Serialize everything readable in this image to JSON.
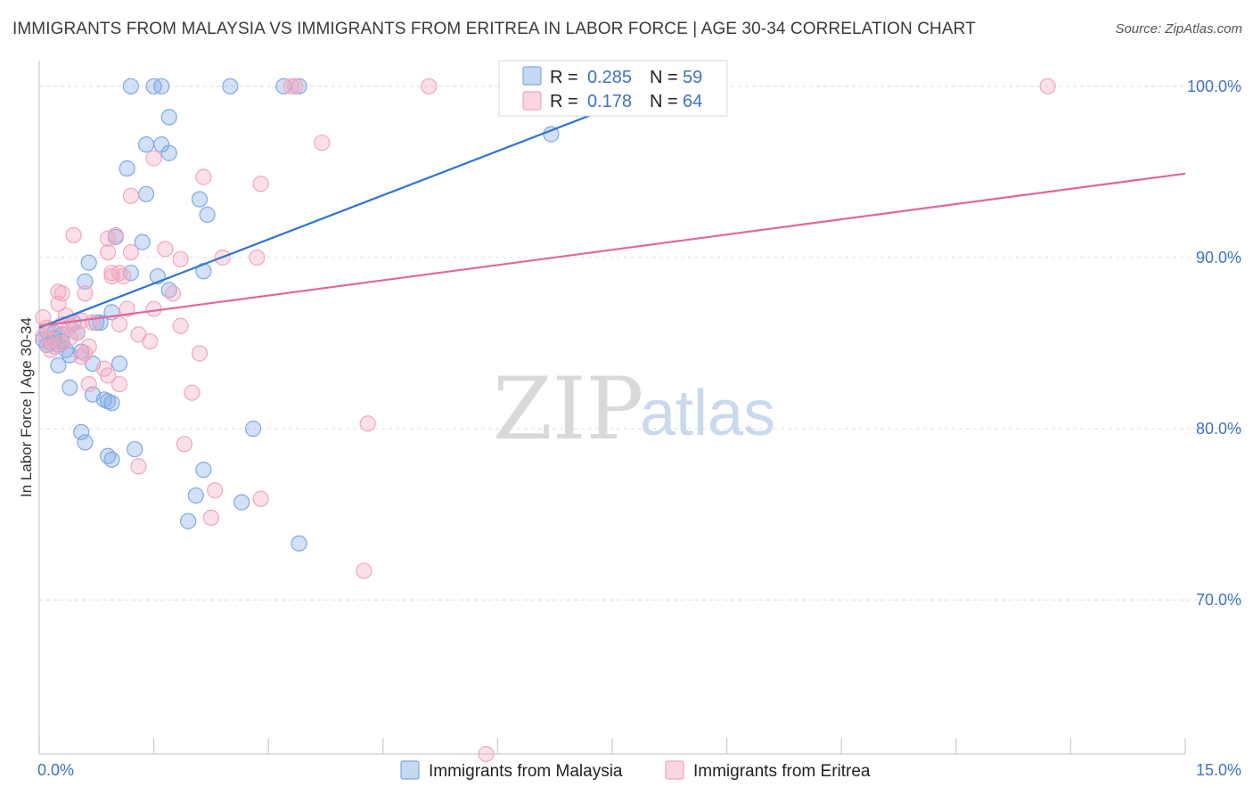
{
  "header": {
    "title": "IMMIGRANTS FROM MALAYSIA VS IMMIGRANTS FROM ERITREA IN LABOR FORCE | AGE 30-34 CORRELATION CHART",
    "source": "Source: ZipAtlas.com"
  },
  "watermark": {
    "zip": "ZIP",
    "atlas": "atlas"
  },
  "legend_top": [
    {
      "r_label": "R =",
      "r_value": "0.285",
      "n_label": "N =",
      "n_value": "59",
      "color": "#7fa8e3"
    },
    {
      "r_label": "R =",
      "r_value": "0.178",
      "n_label": "N =",
      "n_value": "64",
      "color": "#f2a5bf"
    }
  ],
  "chart_data": {
    "type": "scatter",
    "title": "IMMIGRANTS FROM MALAYSIA VS IMMIGRANTS FROM ERITREA IN LABOR FORCE | AGE 30-34 CORRELATION CHART",
    "xlabel": "",
    "ylabel": "In Labor Force | Age 30-34",
    "xlim": [
      0,
      15
    ],
    "ylim": [
      61,
      101.5
    ],
    "x_tick_labels": [
      "0.0%",
      "15.0%"
    ],
    "y_ticks": [
      70,
      80,
      90,
      100
    ],
    "y_tick_labels": [
      "70.0%",
      "80.0%",
      "90.0%",
      "100.0%"
    ],
    "grid": true,
    "legend_position": "top-center",
    "series": [
      {
        "name": "Immigrants from Malaysia",
        "color": "#7fa8e3",
        "line_color": "#2f74d0",
        "trend": {
          "x": [
            0.0,
            8.2
          ],
          "y": [
            85.9,
            100.0
          ]
        },
        "points": [
          [
            1.2,
            100
          ],
          [
            1.5,
            100
          ],
          [
            1.6,
            100
          ],
          [
            2.5,
            100
          ],
          [
            3.2,
            100
          ],
          [
            3.4,
            100
          ],
          [
            1.7,
            98.2
          ],
          [
            1.4,
            96.6
          ],
          [
            1.6,
            96.6
          ],
          [
            1.7,
            96.1
          ],
          [
            1.15,
            95.2
          ],
          [
            1.4,
            93.7
          ],
          [
            2.1,
            93.4
          ],
          [
            2.2,
            92.5
          ],
          [
            6.7,
            97.2
          ],
          [
            1.35,
            90.9
          ],
          [
            1.0,
            91.2
          ],
          [
            0.65,
            89.7
          ],
          [
            0.6,
            88.6
          ],
          [
            1.2,
            89.1
          ],
          [
            1.55,
            88.9
          ],
          [
            2.15,
            89.2
          ],
          [
            1.7,
            88.1
          ],
          [
            0.95,
            86.8
          ],
          [
            0.45,
            86.2
          ],
          [
            0.75,
            86.2
          ],
          [
            0.8,
            86.2
          ],
          [
            0.1,
            85.7
          ],
          [
            0.2,
            85.6
          ],
          [
            0.3,
            85.5
          ],
          [
            0.5,
            85.6
          ],
          [
            0.05,
            85.2
          ],
          [
            0.15,
            85.0
          ],
          [
            0.25,
            84.9
          ],
          [
            0.35,
            84.6
          ],
          [
            0.4,
            84.3
          ],
          [
            0.55,
            84.5
          ],
          [
            0.25,
            83.7
          ],
          [
            0.7,
            83.8
          ],
          [
            1.05,
            83.8
          ],
          [
            0.4,
            82.4
          ],
          [
            0.7,
            82.0
          ],
          [
            0.85,
            81.7
          ],
          [
            0.9,
            81.6
          ],
          [
            0.95,
            81.5
          ],
          [
            0.55,
            79.8
          ],
          [
            0.6,
            79.2
          ],
          [
            1.25,
            78.8
          ],
          [
            0.9,
            78.4
          ],
          [
            0.95,
            78.2
          ],
          [
            2.15,
            77.6
          ],
          [
            2.8,
            80.0
          ],
          [
            2.05,
            76.1
          ],
          [
            2.65,
            75.7
          ],
          [
            1.95,
            74.6
          ],
          [
            3.4,
            73.3
          ],
          [
            0.2,
            85.3
          ],
          [
            0.1,
            84.9
          ],
          [
            0.3,
            85.1
          ]
        ]
      },
      {
        "name": "Immigrants from Eritrea",
        "color": "#f2a5bf",
        "line_color": "#e0679a",
        "trend": {
          "x": [
            0.0,
            15.0
          ],
          "y": [
            86.0,
            94.9
          ]
        },
        "points": [
          [
            3.3,
            100
          ],
          [
            3.35,
            100
          ],
          [
            5.1,
            100
          ],
          [
            13.2,
            100
          ],
          [
            3.7,
            96.7
          ],
          [
            1.5,
            95.8
          ],
          [
            2.15,
            94.7
          ],
          [
            2.9,
            94.3
          ],
          [
            1.2,
            93.6
          ],
          [
            0.45,
            91.3
          ],
          [
            0.9,
            91.1
          ],
          [
            1.0,
            91.3
          ],
          [
            1.2,
            90.3
          ],
          [
            1.65,
            90.5
          ],
          [
            0.9,
            90.3
          ],
          [
            1.85,
            89.9
          ],
          [
            2.4,
            90.0
          ],
          [
            2.85,
            90.0
          ],
          [
            0.95,
            89.1
          ],
          [
            1.05,
            89.1
          ],
          [
            0.95,
            88.9
          ],
          [
            1.1,
            88.9
          ],
          [
            0.25,
            88.0
          ],
          [
            0.3,
            87.9
          ],
          [
            0.6,
            87.9
          ],
          [
            0.25,
            87.3
          ],
          [
            1.15,
            87.0
          ],
          [
            1.5,
            87.0
          ],
          [
            1.75,
            87.9
          ],
          [
            0.05,
            86.5
          ],
          [
            0.35,
            86.6
          ],
          [
            0.55,
            86.3
          ],
          [
            0.4,
            86.0
          ],
          [
            0.7,
            86.2
          ],
          [
            1.05,
            86.1
          ],
          [
            1.85,
            86.0
          ],
          [
            0.5,
            85.6
          ],
          [
            1.3,
            85.5
          ],
          [
            1.45,
            85.1
          ],
          [
            0.05,
            85.4
          ],
          [
            0.15,
            85.2
          ],
          [
            0.3,
            85.0
          ],
          [
            0.15,
            84.6
          ],
          [
            0.65,
            84.8
          ],
          [
            0.6,
            84.4
          ],
          [
            0.55,
            84.2
          ],
          [
            2.1,
            84.4
          ],
          [
            0.85,
            83.5
          ],
          [
            0.9,
            83.1
          ],
          [
            0.65,
            82.6
          ],
          [
            1.05,
            82.6
          ],
          [
            2.0,
            82.1
          ],
          [
            4.3,
            80.3
          ],
          [
            1.9,
            79.1
          ],
          [
            1.3,
            77.8
          ],
          [
            2.3,
            76.4
          ],
          [
            2.9,
            75.9
          ],
          [
            2.25,
            74.8
          ],
          [
            4.25,
            71.7
          ],
          [
            5.85,
            61.0
          ],
          [
            0.2,
            84.8
          ],
          [
            0.4,
            85.3
          ],
          [
            0.3,
            86.1
          ],
          [
            0.1,
            85.9
          ]
        ]
      }
    ]
  }
}
